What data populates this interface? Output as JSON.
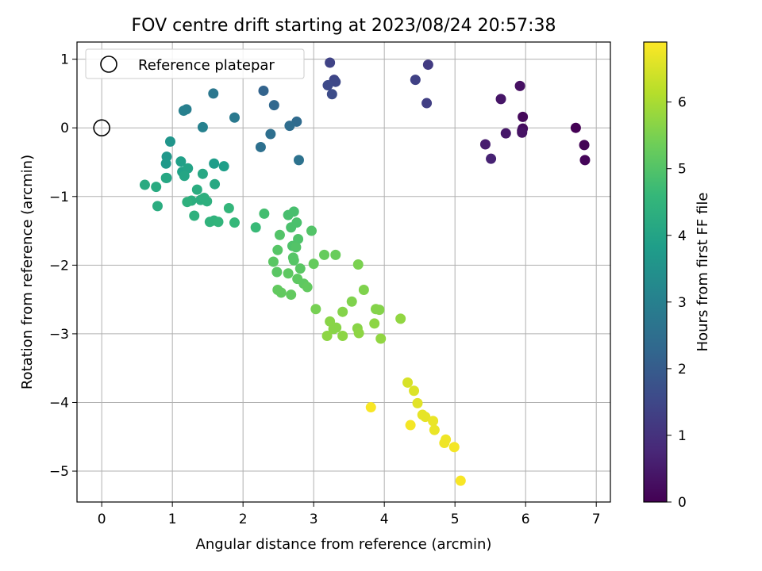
{
  "chart_data": {
    "type": "scatter",
    "title": "FOV centre drift starting at 2023/08/24 20:57:38",
    "xlabel": "Angular distance from reference (arcmin)",
    "ylabel": "Rotation from reference (arcmin)",
    "xlim": [
      -0.35,
      7.2
    ],
    "ylim": [
      -5.45,
      1.25
    ],
    "x_ticks": [
      0,
      1,
      2,
      3,
      4,
      5,
      6,
      7
    ],
    "x_tick_labels": [
      "0",
      "1",
      "2",
      "3",
      "4",
      "5",
      "6",
      "7"
    ],
    "y_ticks": [
      1,
      0,
      -1,
      -2,
      -3,
      -4,
      -5
    ],
    "y_tick_labels": [
      "1",
      "0",
      "−1",
      "−2",
      "−3",
      "−4",
      "−5"
    ],
    "grid": true,
    "legend": {
      "location": "upper-left",
      "entries": [
        "Reference platepar"
      ]
    },
    "reference_point": {
      "x": 0,
      "y": 0
    },
    "colorbar": {
      "label": "Hours from first FF file",
      "colormap": "viridis",
      "range": [
        0,
        6.9
      ],
      "ticks": [
        0,
        1,
        2,
        3,
        4,
        5,
        6
      ],
      "tick_labels": [
        "0",
        "1",
        "2",
        "3",
        "4",
        "5",
        "6"
      ]
    },
    "colormap_stops": [
      "#440154",
      "#482878",
      "#3e4989",
      "#31688e",
      "#26828e",
      "#1f9e89",
      "#35b779",
      "#6ece58",
      "#b5de2b",
      "#fde725"
    ],
    "series": [
      {
        "x": [
          6.71,
          6.83,
          6.84,
          5.96,
          5.96,
          5.95,
          5.92,
          5.95,
          5.65,
          5.72,
          5.43,
          5.51,
          4.62,
          4.6,
          4.44,
          3.23,
          3.29,
          3.31,
          3.2,
          3.26,
          2.29,
          2.44,
          2.76,
          2.66,
          2.39,
          2.25,
          2.79,
          1.58,
          1.88,
          1.2,
          1.16,
          1.43,
          0.97,
          0.92,
          0.91,
          0.92,
          1.59,
          1.73,
          1.12,
          1.14,
          1.22,
          1.17,
          0.91,
          1.43,
          1.6,
          0.61,
          0.77,
          0.79,
          1.35,
          1.27,
          1.4,
          1.45,
          1.49,
          1.21,
          1.31,
          1.53,
          1.59,
          1.65,
          1.8,
          1.88,
          2.18,
          2.3,
          2.64,
          2.72,
          2.68,
          2.76,
          2.7,
          2.78,
          2.97,
          2.75,
          2.52,
          2.71,
          2.49,
          2.72,
          2.43,
          2.81,
          2.48,
          2.64,
          2.77,
          2.86,
          2.91,
          2.49,
          2.54,
          2.68,
          3.0,
          3.15,
          3.31,
          3.03,
          3.63,
          3.71,
          3.54,
          3.88,
          3.93,
          3.41,
          3.23,
          3.32,
          3.28,
          3.62,
          3.86,
          3.19,
          3.41,
          3.64,
          3.95,
          4.23,
          3.81,
          4.33,
          4.42,
          4.47,
          4.54,
          4.58,
          4.69,
          4.71,
          4.87,
          4.85,
          4.99,
          4.37,
          5.08
        ],
        "y": [
          0.0,
          -0.25,
          -0.47,
          0.16,
          -0.01,
          -0.04,
          0.61,
          -0.07,
          0.42,
          -0.08,
          -0.24,
          -0.45,
          0.92,
          0.36,
          0.7,
          0.95,
          0.7,
          0.67,
          0.62,
          0.49,
          0.54,
          0.33,
          0.09,
          0.03,
          -0.09,
          -0.28,
          -0.47,
          0.5,
          0.15,
          0.27,
          0.25,
          0.01,
          -0.2,
          -0.42,
          -0.52,
          -0.73,
          -0.52,
          -0.56,
          -0.49,
          -0.64,
          -0.59,
          -0.7,
          -0.73,
          -0.67,
          -0.82,
          -0.83,
          -0.86,
          -1.14,
          -0.9,
          -1.06,
          -1.05,
          -1.02,
          -1.07,
          -1.08,
          -1.28,
          -1.37,
          -1.35,
          -1.37,
          -1.17,
          -1.38,
          -1.45,
          -1.25,
          -1.27,
          -1.22,
          -1.45,
          -1.38,
          -1.72,
          -1.62,
          -1.5,
          -1.74,
          -1.56,
          -1.89,
          -1.78,
          -1.93,
          -1.95,
          -2.05,
          -2.1,
          -2.12,
          -2.2,
          -2.27,
          -2.32,
          -2.36,
          -2.4,
          -2.43,
          -1.98,
          -1.85,
          -1.85,
          -2.64,
          -1.99,
          -2.36,
          -2.53,
          -2.64,
          -2.65,
          -2.68,
          -2.82,
          -2.91,
          -2.93,
          -2.92,
          -2.85,
          -3.03,
          -3.03,
          -2.99,
          -3.07,
          -2.78,
          -4.07,
          -3.71,
          -3.83,
          -4.01,
          -4.18,
          -4.21,
          -4.27,
          -4.4,
          -4.54,
          -4.59,
          -4.65,
          -4.33,
          -5.14
        ],
        "hours": [
          0.0,
          0.05,
          0.1,
          0.15,
          0.2,
          0.25,
          0.3,
          0.35,
          0.4,
          0.45,
          0.55,
          0.65,
          1.2,
          1.3,
          1.35,
          1.4,
          1.45,
          1.5,
          1.55,
          1.6,
          2.2,
          2.3,
          2.4,
          2.45,
          2.5,
          2.55,
          2.6,
          2.75,
          2.8,
          2.95,
          3.0,
          3.05,
          3.6,
          3.65,
          3.7,
          3.75,
          3.8,
          3.85,
          3.9,
          3.95,
          4.0,
          4.05,
          4.1,
          4.1,
          4.15,
          4.2,
          4.2,
          4.25,
          4.25,
          4.3,
          4.3,
          4.35,
          4.35,
          4.4,
          4.4,
          4.45,
          4.45,
          4.5,
          4.55,
          4.6,
          4.65,
          4.8,
          4.85,
          4.85,
          4.9,
          4.9,
          4.95,
          4.95,
          5.0,
          5.0,
          5.0,
          5.05,
          5.05,
          5.05,
          5.1,
          5.1,
          5.1,
          5.15,
          5.15,
          5.15,
          5.2,
          5.2,
          5.2,
          5.2,
          5.25,
          5.25,
          5.3,
          5.45,
          5.5,
          5.55,
          5.55,
          5.6,
          5.6,
          5.6,
          5.65,
          5.65,
          5.65,
          5.65,
          5.7,
          5.7,
          5.7,
          5.7,
          5.75,
          5.75,
          6.85,
          6.5,
          6.55,
          6.6,
          6.65,
          6.65,
          6.7,
          6.7,
          6.75,
          6.75,
          6.8,
          6.8,
          6.85
        ]
      }
    ]
  }
}
